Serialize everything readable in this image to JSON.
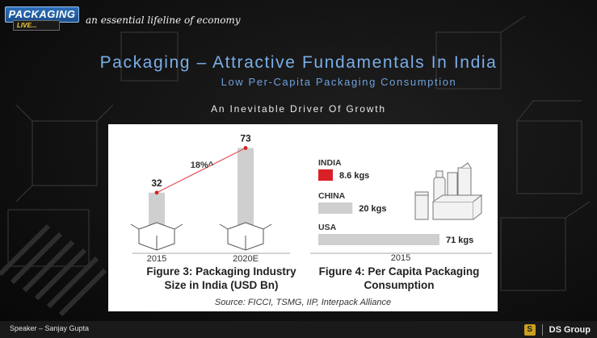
{
  "header": {
    "logo_top": "PACKAGING",
    "logo_bottom": "LIVE...",
    "tagline": "an essential lifeline of economy"
  },
  "slide": {
    "title": "Packaging – Attractive Fundamentals In India",
    "subtitle": "Low Per-Capita Packaging Consumption",
    "driver": "An Inevitable Driver Of Growth"
  },
  "colors": {
    "title": "#7aaee8",
    "bar": "#cfcfcf",
    "highlight": "#d92027",
    "growth_line": "#e06060"
  },
  "chart_data": [
    {
      "type": "bar",
      "title": "Figure 3: Packaging Industry Size in India (USD Bn)",
      "title_lines": [
        "Figure 3: Packaging Industry",
        "Size in India (USD Bn)"
      ],
      "categories": [
        "2015",
        "2020E"
      ],
      "values": [
        32,
        73
      ],
      "value_labels": [
        "32",
        "73"
      ],
      "annotation": "18%^",
      "ylim": [
        0,
        80
      ]
    },
    {
      "type": "bar",
      "orientation": "horizontal",
      "title": "Figure 4: Per Capita Packaging Consumption",
      "title_lines": [
        "Figure 4: Per Capita Packaging",
        "Consumption"
      ],
      "categories": [
        "INDIA",
        "CHINA",
        "USA"
      ],
      "values": [
        8.6,
        20,
        71
      ],
      "value_labels": [
        "8.6 kgs",
        "20 kgs",
        "71 kgs"
      ],
      "xlabel": "2015",
      "xlim": [
        0,
        71
      ]
    }
  ],
  "source": "Source: FICCI, TSMG, IIP, Interpack Alliance",
  "footer": {
    "speaker": "Speaker – Sanjay Gupta",
    "brand": "DS Group",
    "brand_mark": "S"
  }
}
